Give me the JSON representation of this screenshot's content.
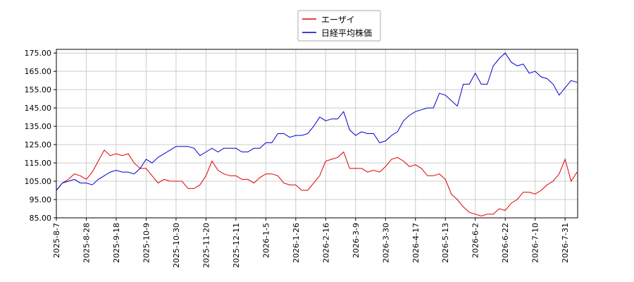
{
  "chart_data": {
    "type": "line",
    "categories": [
      "2025-8-7",
      null,
      null,
      null,
      null,
      "2025-8-28",
      null,
      null,
      null,
      null,
      "2025-9-18",
      null,
      null,
      null,
      null,
      "2025-10-9",
      null,
      null,
      null,
      null,
      "2025-10-30",
      null,
      null,
      null,
      null,
      "2025-11-20",
      null,
      null,
      null,
      null,
      "2025-12-11",
      null,
      null,
      null,
      null,
      "2026-1-5",
      null,
      null,
      null,
      null,
      "2026-1-26",
      null,
      null,
      null,
      null,
      "2026-2-16",
      null,
      null,
      null,
      null,
      "2026-3-9",
      null,
      null,
      null,
      null,
      "2026-3-30",
      null,
      null,
      null,
      null,
      "2026-4-17",
      null,
      null,
      null,
      null,
      "2026-5-13",
      null,
      null,
      null,
      null,
      "2026-6-2",
      null,
      null,
      null,
      null,
      "2026-6-22",
      null,
      null,
      null,
      null,
      "2026-7-10",
      null,
      null,
      null,
      null,
      "2026-7-31",
      null,
      null
    ],
    "series": [
      {
        "name": "エーザイ",
        "color": "#dd0000",
        "values": [
          100,
          104,
          106,
          109,
          108,
          106,
          110,
          116,
          122,
          119,
          120,
          119,
          120,
          115,
          112,
          112,
          108,
          104,
          106,
          105,
          105,
          105,
          101,
          101,
          103,
          108,
          116,
          111,
          109,
          108,
          108,
          106,
          106,
          104,
          107,
          109,
          109,
          108,
          104,
          103,
          103,
          100,
          100,
          104,
          108,
          116,
          117,
          118,
          121,
          112,
          112,
          112,
          110,
          111,
          110,
          113,
          117,
          118,
          116,
          113,
          114,
          112,
          108,
          108,
          109,
          106,
          98,
          95,
          91,
          88,
          87,
          86,
          87,
          87,
          90,
          89,
          93,
          95,
          99,
          99,
          98,
          100,
          103,
          105,
          109,
          117,
          105,
          110
        ]
      },
      {
        "name": "日経平均株価",
        "color": "#0000cc",
        "values": [
          100,
          104,
          105,
          106,
          104,
          104,
          103,
          106,
          108,
          110,
          111,
          110,
          110,
          109,
          112,
          117,
          115,
          118,
          120,
          122,
          124,
          124,
          124,
          123,
          119,
          121,
          123,
          121,
          123,
          123,
          123,
          121,
          121,
          123,
          123,
          126,
          126,
          131,
          131,
          129,
          130,
          130,
          131,
          135,
          140,
          138,
          139,
          139,
          143,
          133,
          130,
          132,
          131,
          131,
          126,
          127,
          130,
          132,
          138,
          141,
          143,
          144,
          145,
          145,
          153,
          152,
          149,
          146,
          158,
          158,
          164,
          158,
          158,
          168,
          172,
          175,
          170,
          168,
          169,
          164,
          165,
          162,
          161,
          158,
          152,
          156,
          160,
          159
        ]
      }
    ],
    "ylim": [
      85,
      177
    ],
    "yticks": [
      {
        "value": 85,
        "label": "85.00"
      },
      {
        "value": 95,
        "label": "95.00"
      },
      {
        "value": 105,
        "label": "105.00"
      },
      {
        "value": 115,
        "label": "115.00"
      },
      {
        "value": 125,
        "label": "125.00"
      },
      {
        "value": 135,
        "label": "135.00"
      },
      {
        "value": 145,
        "label": "145.00"
      },
      {
        "value": 155,
        "label": "155.00"
      },
      {
        "value": 165,
        "label": "165.00"
      },
      {
        "value": 175,
        "label": "175.00"
      }
    ],
    "grid": true,
    "legend": "top"
  }
}
